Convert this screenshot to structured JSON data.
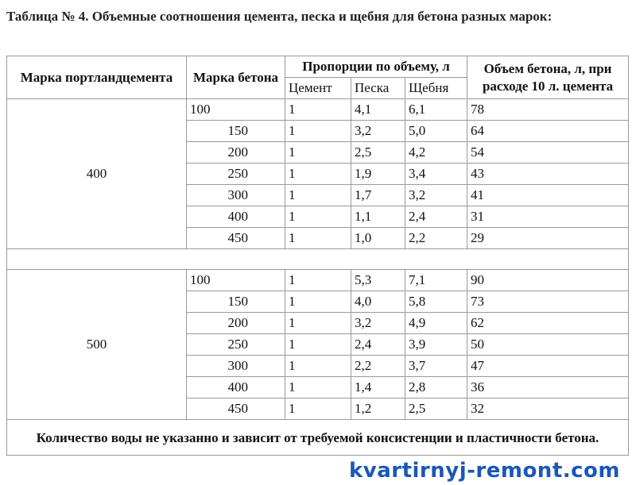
{
  "title": "Таблица № 4. Объемные соотношения цемента, песка и щебня для бетона разных марок:",
  "headers": {
    "cement_grade": "Марка портландцемента",
    "concrete_grade": "Марка бетона",
    "proportions": "Пропорции по объему, л",
    "cement": "Цемент",
    "sand": "Песка",
    "gravel": "Щебня",
    "concrete_volume": "Объем бетона, л, при расходе 10 л. цемента"
  },
  "groups": [
    {
      "cement_grade": "400",
      "rows": [
        {
          "grade": "100",
          "cement": "1",
          "sand": "4,1",
          "gravel": "6,1",
          "volume": "78"
        },
        {
          "grade": "150",
          "cement": "1",
          "sand": "3,2",
          "gravel": "5,0",
          "volume": "64"
        },
        {
          "grade": "200",
          "cement": "1",
          "sand": "2,5",
          "gravel": "4,2",
          "volume": "54"
        },
        {
          "grade": "250",
          "cement": "1",
          "sand": "1,9",
          "gravel": "3,4",
          "volume": "43"
        },
        {
          "grade": "300",
          "cement": "1",
          "sand": "1,7",
          "gravel": "3,2",
          "volume": "41"
        },
        {
          "grade": "400",
          "cement": "1",
          "sand": "1,1",
          "gravel": "2,4",
          "volume": "31"
        },
        {
          "grade": "450",
          "cement": "1",
          "sand": "1,0",
          "gravel": "2,2",
          "volume": "29"
        }
      ]
    },
    {
      "cement_grade": "500",
      "rows": [
        {
          "grade": "100",
          "cement": "1",
          "sand": "5,3",
          "gravel": "7,1",
          "volume": "90"
        },
        {
          "grade": "150",
          "cement": "1",
          "sand": "4,0",
          "gravel": "5,8",
          "volume": "73"
        },
        {
          "grade": "200",
          "cement": "1",
          "sand": "3,2",
          "gravel": "4,9",
          "volume": "62"
        },
        {
          "grade": "250",
          "cement": "1",
          "sand": "2,4",
          "gravel": "3,9",
          "volume": "50"
        },
        {
          "grade": "300",
          "cement": "1",
          "sand": "2,2",
          "gravel": "3,7",
          "volume": "47"
        },
        {
          "grade": "400",
          "cement": "1",
          "sand": "1,4",
          "gravel": "2,8",
          "volume": "36"
        },
        {
          "grade": "450",
          "cement": "1",
          "sand": "1,2",
          "gravel": "2,5",
          "volume": "32"
        }
      ]
    }
  ],
  "footnote": "Количество воды не указанно и зависит от требуемой консистенции и пластичности бетона.",
  "watermark": "kvartirnyj-remont.com",
  "colors": {
    "watermark": "#1a57b8",
    "border": "#9a9a9a"
  }
}
